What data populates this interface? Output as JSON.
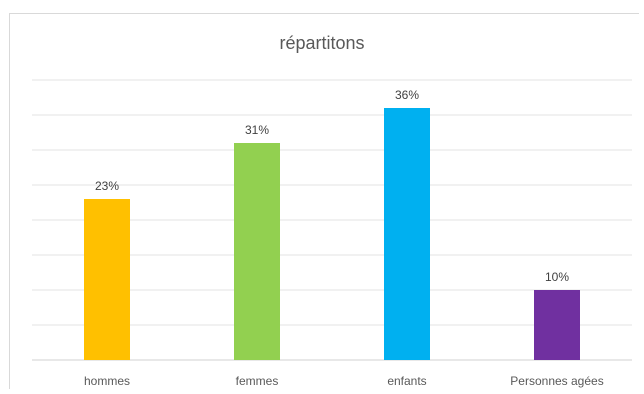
{
  "chart_data": {
    "type": "bar",
    "title": "répartitons",
    "categories": [
      "hommes",
      "femmes",
      "enfants",
      "Personnes agées"
    ],
    "values": [
      23,
      31,
      36,
      10
    ],
    "data_labels": [
      "23%",
      "31%",
      "36%",
      "10%"
    ],
    "colors": [
      "#FFC000",
      "#92D050",
      "#00B0F0",
      "#7030A0"
    ],
    "ylim": [
      0,
      40
    ],
    "y_gridline_step": 5,
    "grid": true,
    "legend": "none"
  }
}
